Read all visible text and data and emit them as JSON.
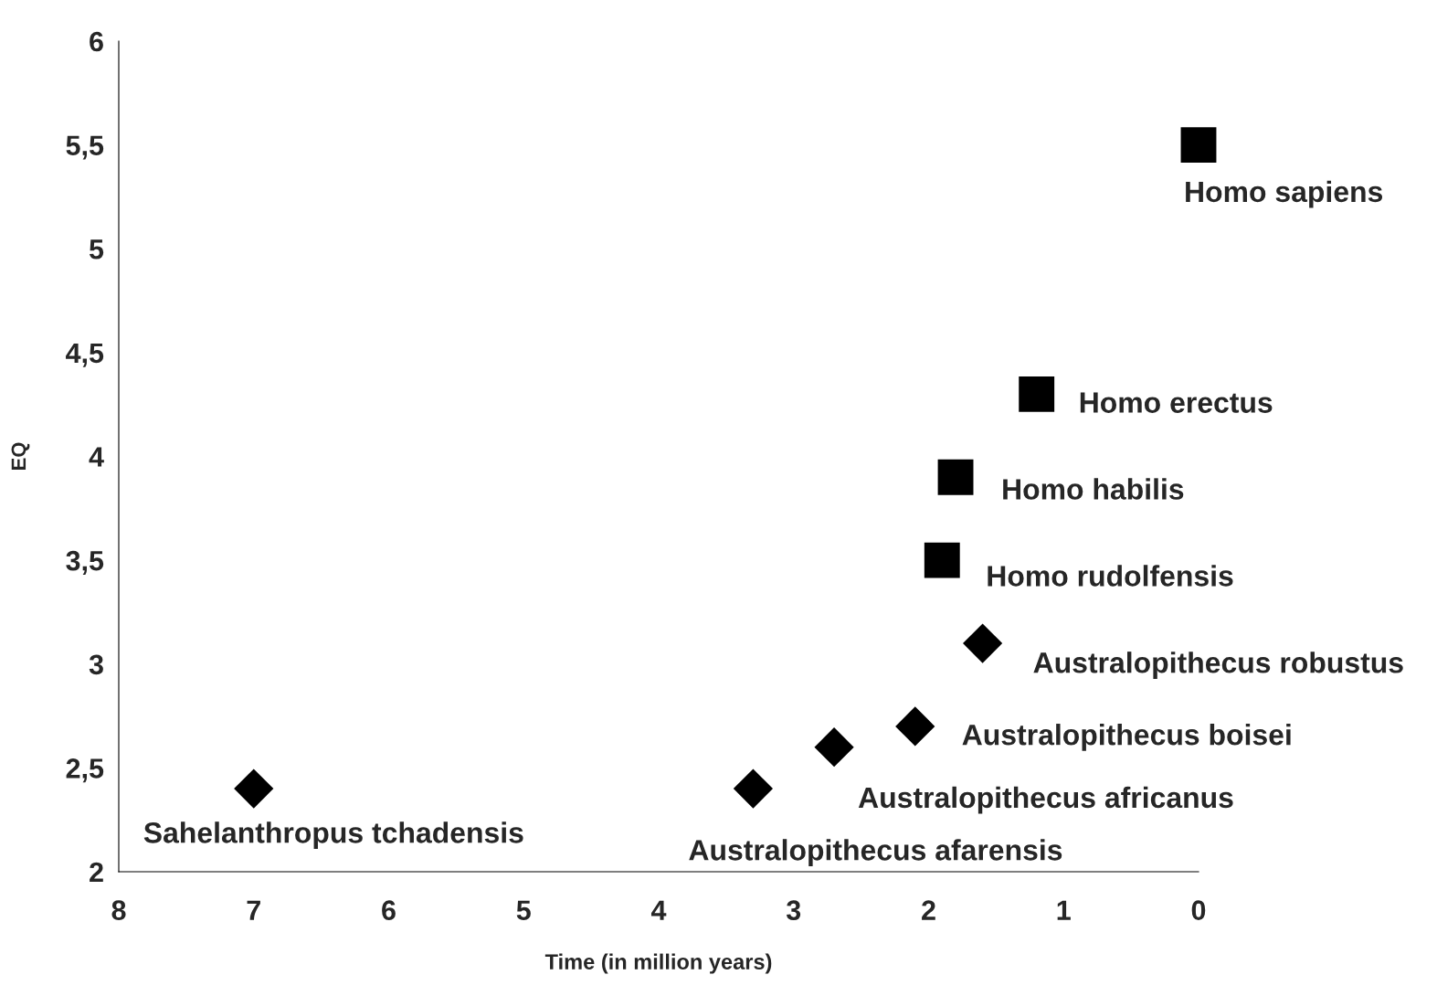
{
  "chart_data": {
    "type": "scatter",
    "xlabel": "Time (in million years)",
    "ylabel": "EQ",
    "xlim": [
      8,
      0
    ],
    "xticks": [
      8,
      7,
      6,
      5,
      4,
      3,
      2,
      1,
      0
    ],
    "ylim": [
      2,
      6
    ],
    "yticks": [
      2,
      {
        "value": 2.5,
        "label": "2,5"
      },
      3,
      {
        "value": 3.5,
        "label": "3,5"
      },
      4,
      {
        "value": 4.5,
        "label": "4,5"
      },
      5,
      {
        "value": 5.5,
        "label": "5,5"
      },
      6
    ],
    "grid": false,
    "legend": false,
    "series": [
      {
        "color": "#000000",
        "marker": "diamond",
        "x": [
          7,
          3.3,
          2.7,
          2.1,
          1.6
        ],
        "values": [
          2.4,
          2.4,
          2.6,
          2.7,
          3.1
        ]
      },
      {
        "color": "#000000",
        "marker": "square",
        "x": [
          1.9,
          1.8,
          1.2,
          0
        ],
        "values": [
          3.5,
          3.9,
          4.3,
          5.5
        ]
      }
    ],
    "annotations": [
      {
        "text": "Sahelanthropus tchadensis",
        "x": 7,
        "y": 2.4
      },
      {
        "text": "Australopithecus afarensis",
        "x": 3.3,
        "y": 2.4
      },
      {
        "text": "Australopithecus africanus",
        "x": 2.7,
        "y": 2.6
      },
      {
        "text": "Australopithecus boisei",
        "x": 2.1,
        "y": 2.7
      },
      {
        "text": "Australopithecus robustus",
        "x": 1.6,
        "y": 3.1
      },
      {
        "text": "Homo rudolfensis",
        "x": 1.9,
        "y": 3.5
      },
      {
        "text": "Homo habilis",
        "x": 1.8,
        "y": 3.9
      },
      {
        "text": "Homo erectus",
        "x": 1.2,
        "y": 4.3
      },
      {
        "text": "Homo sapiens",
        "x": 0,
        "y": 5.5
      }
    ]
  }
}
